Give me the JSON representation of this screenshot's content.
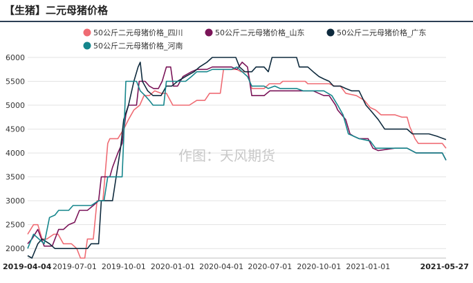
{
  "header": {
    "title": "【生猪】二元母猪价格"
  },
  "chart_data": {
    "type": "line",
    "title": "【生猪】二元母猪价格",
    "watermark": "作图：天风期货",
    "ylim": [
      1800,
      6000
    ],
    "yticks": [
      2000,
      2500,
      3000,
      3500,
      4000,
      4500,
      5000,
      5500,
      6000
    ],
    "xlim": [
      "2019-04-04",
      "2021-05-27"
    ],
    "xticks": [
      {
        "date": "2019-04-04",
        "label": "2019-04-04",
        "bold": true
      },
      {
        "date": "2019-07-01",
        "label": "2019-07-01",
        "bold": false
      },
      {
        "date": "2019-10-01",
        "label": "2019-10-01",
        "bold": false
      },
      {
        "date": "2020-01-01",
        "label": "2020-01-01",
        "bold": false
      },
      {
        "date": "2020-04-01",
        "label": "2020-04-01",
        "bold": false
      },
      {
        "date": "2020-07-01",
        "label": "2020-07-01",
        "bold": false
      },
      {
        "date": "2020-10-01",
        "label": "2020-10-01",
        "bold": false
      },
      {
        "date": "2021-01-01",
        "label": "2021-01-01",
        "bold": false
      },
      {
        "date": "2021-05-27",
        "label": "2021-05-27",
        "bold": true
      }
    ],
    "grid": "horizontal",
    "legend_position": "top",
    "series": [
      {
        "name": "50公斤二元母猪价格_四川",
        "color": "#ef6b73",
        "points": [
          [
            "2019-04-04",
            2300
          ],
          [
            "2019-04-15",
            2500
          ],
          [
            "2019-04-23",
            2500
          ],
          [
            "2019-05-01",
            2200
          ],
          [
            "2019-05-10",
            2200
          ],
          [
            "2019-05-23",
            2300
          ],
          [
            "2019-05-31",
            2300
          ],
          [
            "2019-06-10",
            2100
          ],
          [
            "2019-06-25",
            2100
          ],
          [
            "2019-07-05",
            2000
          ],
          [
            "2019-07-12",
            1800
          ],
          [
            "2019-07-20",
            1800
          ],
          [
            "2019-07-25",
            2200
          ],
          [
            "2019-08-05",
            2200
          ],
          [
            "2019-08-12",
            3000
          ],
          [
            "2019-08-23",
            3000
          ],
          [
            "2019-09-01",
            4200
          ],
          [
            "2019-09-05",
            4300
          ],
          [
            "2019-09-20",
            4300
          ],
          [
            "2019-10-01",
            4500
          ],
          [
            "2019-10-10",
            4700
          ],
          [
            "2019-10-20",
            4900
          ],
          [
            "2019-10-31",
            5000
          ],
          [
            "2019-11-08",
            5200
          ],
          [
            "2019-11-18",
            5200
          ],
          [
            "2019-11-28",
            5300
          ],
          [
            "2019-12-10",
            5250
          ],
          [
            "2019-12-20",
            5250
          ],
          [
            "2020-01-01",
            5000
          ],
          [
            "2020-02-01",
            5000
          ],
          [
            "2020-02-15",
            5100
          ],
          [
            "2020-03-01",
            5100
          ],
          [
            "2020-03-10",
            5250
          ],
          [
            "2020-03-30",
            5250
          ],
          [
            "2020-04-05",
            5750
          ],
          [
            "2020-04-30",
            5750
          ],
          [
            "2020-05-08",
            5700
          ],
          [
            "2020-05-20",
            5700
          ],
          [
            "2020-05-28",
            5350
          ],
          [
            "2020-06-20",
            5350
          ],
          [
            "2020-06-30",
            5450
          ],
          [
            "2020-07-20",
            5450
          ],
          [
            "2020-07-25",
            5500
          ],
          [
            "2020-09-05",
            5500
          ],
          [
            "2020-09-10",
            5450
          ],
          [
            "2020-10-20",
            5450
          ],
          [
            "2020-10-30",
            5400
          ],
          [
            "2020-11-10",
            5400
          ],
          [
            "2020-11-20",
            5250
          ],
          [
            "2020-12-10",
            5200
          ],
          [
            "2020-12-25",
            5100
          ],
          [
            "2021-01-05",
            4950
          ],
          [
            "2021-01-15",
            4900
          ],
          [
            "2021-01-25",
            4800
          ],
          [
            "2021-02-20",
            4800
          ],
          [
            "2021-03-05",
            4750
          ],
          [
            "2021-03-15",
            4750
          ],
          [
            "2021-03-20",
            4550
          ],
          [
            "2021-03-30",
            4300
          ],
          [
            "2021-04-05",
            4200
          ],
          [
            "2021-05-20",
            4200
          ],
          [
            "2021-05-27",
            4100
          ]
        ]
      },
      {
        "name": "50公斤二元母猪价格_山东",
        "color": "#7a1458",
        "points": [
          [
            "2019-04-04",
            2100
          ],
          [
            "2019-04-12",
            2200
          ],
          [
            "2019-04-23",
            2400
          ],
          [
            "2019-05-05",
            2050
          ],
          [
            "2019-05-20",
            2050
          ],
          [
            "2019-06-01",
            2400
          ],
          [
            "2019-06-10",
            2400
          ],
          [
            "2019-06-20",
            2500
          ],
          [
            "2019-07-01",
            2550
          ],
          [
            "2019-07-10",
            2800
          ],
          [
            "2019-07-25",
            2800
          ],
          [
            "2019-08-05",
            2900
          ],
          [
            "2019-08-15",
            3000
          ],
          [
            "2019-08-20",
            3500
          ],
          [
            "2019-09-05",
            3500
          ],
          [
            "2019-09-10",
            3700
          ],
          [
            "2019-09-20",
            4000
          ],
          [
            "2019-09-28",
            4200
          ],
          [
            "2019-10-05",
            4800
          ],
          [
            "2019-10-10",
            5000
          ],
          [
            "2019-10-25",
            5000
          ],
          [
            "2019-10-30",
            5500
          ],
          [
            "2019-11-10",
            5500
          ],
          [
            "2019-11-18",
            5400
          ],
          [
            "2019-11-26",
            5350
          ],
          [
            "2019-12-05",
            5350
          ],
          [
            "2019-12-12",
            5500
          ],
          [
            "2019-12-20",
            5800
          ],
          [
            "2019-12-28",
            5800
          ],
          [
            "2020-01-02",
            5400
          ],
          [
            "2020-01-10",
            5400
          ],
          [
            "2020-01-20",
            5600
          ],
          [
            "2020-02-05",
            5700
          ],
          [
            "2020-02-15",
            5750
          ],
          [
            "2020-03-05",
            5750
          ],
          [
            "2020-03-15",
            5800
          ],
          [
            "2020-04-20",
            5800
          ],
          [
            "2020-04-30",
            5750
          ],
          [
            "2020-05-10",
            5900
          ],
          [
            "2020-05-20",
            5800
          ],
          [
            "2020-05-28",
            5200
          ],
          [
            "2020-06-20",
            5200
          ],
          [
            "2020-07-01",
            5300
          ],
          [
            "2020-08-10",
            5300
          ],
          [
            "2020-09-20",
            5300
          ],
          [
            "2020-10-10",
            5200
          ],
          [
            "2020-10-20",
            5200
          ],
          [
            "2020-11-01",
            5000
          ],
          [
            "2020-11-05",
            4900
          ],
          [
            "2020-11-20",
            4700
          ],
          [
            "2020-11-28",
            4400
          ],
          [
            "2020-12-05",
            4350
          ],
          [
            "2020-12-15",
            4300
          ],
          [
            "2021-01-01",
            4300
          ],
          [
            "2021-01-10",
            4100
          ],
          [
            "2021-01-20",
            4050
          ],
          [
            "2021-02-20",
            4100
          ],
          [
            "2021-03-15",
            4100
          ],
          [
            "2021-04-01",
            4000
          ],
          [
            "2021-05-20",
            4000
          ],
          [
            "2021-05-27",
            3850
          ]
        ]
      },
      {
        "name": "50公斤二元母猪价格_广东",
        "color": "#0e2a3d",
        "points": [
          [
            "2019-04-04",
            1850
          ],
          [
            "2019-04-12",
            1800
          ],
          [
            "2019-04-23",
            2100
          ],
          [
            "2019-05-01",
            2200
          ],
          [
            "2019-05-15",
            2100
          ],
          [
            "2019-05-25",
            2000
          ],
          [
            "2019-07-01",
            2000
          ],
          [
            "2019-07-25",
            2000
          ],
          [
            "2019-08-01",
            2100
          ],
          [
            "2019-08-15",
            2100
          ],
          [
            "2019-08-20",
            3000
          ],
          [
            "2019-09-10",
            3000
          ],
          [
            "2019-09-25",
            4100
          ],
          [
            "2019-10-01",
            4700
          ],
          [
            "2019-10-10",
            5000
          ],
          [
            "2019-10-20",
            5500
          ],
          [
            "2019-10-28",
            5800
          ],
          [
            "2019-11-01",
            5900
          ],
          [
            "2019-11-05",
            5500
          ],
          [
            "2019-11-15",
            5300
          ],
          [
            "2019-11-25",
            5200
          ],
          [
            "2019-12-10",
            5200
          ],
          [
            "2019-12-20",
            5400
          ],
          [
            "2019-12-30",
            5400
          ],
          [
            "2020-01-10",
            5500
          ],
          [
            "2020-01-25",
            5600
          ],
          [
            "2020-02-10",
            5700
          ],
          [
            "2020-02-20",
            5800
          ],
          [
            "2020-03-05",
            5900
          ],
          [
            "2020-03-15",
            6000
          ],
          [
            "2020-04-20",
            6000
          ],
          [
            "2020-04-28",
            6000
          ],
          [
            "2020-05-05",
            5800
          ],
          [
            "2020-05-15",
            5700
          ],
          [
            "2020-05-28",
            5700
          ],
          [
            "2020-06-05",
            5800
          ],
          [
            "2020-06-20",
            5800
          ],
          [
            "2020-06-28",
            5700
          ],
          [
            "2020-07-05",
            6000
          ],
          [
            "2020-08-20",
            6000
          ],
          [
            "2020-08-25",
            5800
          ],
          [
            "2020-09-10",
            5800
          ],
          [
            "2020-09-20",
            5700
          ],
          [
            "2020-10-01",
            5600
          ],
          [
            "2020-10-10",
            5550
          ],
          [
            "2020-10-20",
            5500
          ],
          [
            "2020-10-28",
            5400
          ],
          [
            "2020-11-10",
            5400
          ],
          [
            "2020-11-20",
            5350
          ],
          [
            "2020-12-01",
            5300
          ],
          [
            "2020-12-15",
            5300
          ],
          [
            "2020-12-28",
            5000
          ],
          [
            "2021-01-05",
            4900
          ],
          [
            "2021-01-20",
            4700
          ],
          [
            "2021-02-01",
            4500
          ],
          [
            "2021-03-15",
            4500
          ],
          [
            "2021-03-25",
            4400
          ],
          [
            "2021-04-25",
            4400
          ],
          [
            "2021-05-10",
            4350
          ],
          [
            "2021-05-27",
            4280
          ]
        ]
      },
      {
        "name": "50公斤二元母猪价格_河南",
        "color": "#15868c",
        "points": [
          [
            "2019-04-04",
            2000
          ],
          [
            "2019-04-15",
            2300
          ],
          [
            "2019-04-25",
            2200
          ],
          [
            "2019-05-05",
            2100
          ],
          [
            "2019-05-15",
            2650
          ],
          [
            "2019-05-25",
            2700
          ],
          [
            "2019-06-01",
            2800
          ],
          [
            "2019-06-20",
            2800
          ],
          [
            "2019-06-28",
            2900
          ],
          [
            "2019-07-20",
            2900
          ],
          [
            "2019-08-01",
            2900
          ],
          [
            "2019-08-15",
            3000
          ],
          [
            "2019-08-25",
            3000
          ],
          [
            "2019-09-01",
            3500
          ],
          [
            "2019-09-28",
            3500
          ],
          [
            "2019-10-01",
            4300
          ],
          [
            "2019-10-05",
            5500
          ],
          [
            "2019-10-25",
            5500
          ],
          [
            "2019-11-01",
            5300
          ],
          [
            "2019-11-10",
            5200
          ],
          [
            "2019-11-18",
            5100
          ],
          [
            "2019-11-25",
            5000
          ],
          [
            "2019-12-15",
            5000
          ],
          [
            "2019-12-20",
            5500
          ],
          [
            "2020-01-25",
            5500
          ],
          [
            "2020-02-05",
            5600
          ],
          [
            "2020-02-15",
            5700
          ],
          [
            "2020-03-05",
            5700
          ],
          [
            "2020-03-15",
            5750
          ],
          [
            "2020-04-20",
            5750
          ],
          [
            "2020-04-30",
            5800
          ],
          [
            "2020-05-10",
            5700
          ],
          [
            "2020-05-20",
            5600
          ],
          [
            "2020-05-28",
            5400
          ],
          [
            "2020-06-20",
            5400
          ],
          [
            "2020-06-28",
            5350
          ],
          [
            "2020-07-10",
            5400
          ],
          [
            "2020-07-20",
            5350
          ],
          [
            "2020-08-20",
            5350
          ],
          [
            "2020-09-01",
            5300
          ],
          [
            "2020-10-10",
            5300
          ],
          [
            "2020-10-25",
            5200
          ],
          [
            "2020-11-05",
            5000
          ],
          [
            "2020-11-15",
            4800
          ],
          [
            "2020-11-25",
            4400
          ],
          [
            "2020-12-05",
            4350
          ],
          [
            "2020-12-15",
            4300
          ],
          [
            "2021-01-05",
            4250
          ],
          [
            "2021-01-15",
            4100
          ],
          [
            "2021-02-01",
            4100
          ],
          [
            "2021-03-15",
            4100
          ],
          [
            "2021-04-01",
            4000
          ],
          [
            "2021-05-20",
            4000
          ],
          [
            "2021-05-27",
            3850
          ]
        ]
      }
    ]
  }
}
